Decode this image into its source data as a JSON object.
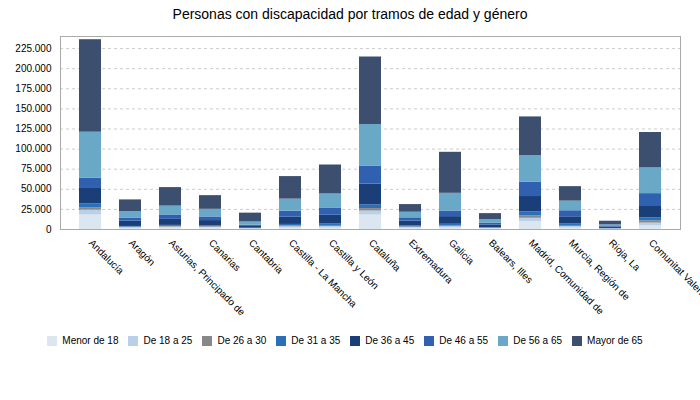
{
  "chart_data": {
    "type": "bar",
    "title": "Personas con discapacidad por tramos de edad y género",
    "categories": [
      "Andalucía",
      "Aragón",
      "Asturias, Principado de",
      "Canarias",
      "Cantabria",
      "Castilla - La Mancha",
      "Castilla y León",
      "Cataluña",
      "Extremadura",
      "Galicia",
      "Balears, Illes",
      "Madrid, Comunidad de",
      "Murcia, Región de",
      "Rioja, La",
      "Comunitat Valenciana"
    ],
    "series": [
      {
        "name": "Menor de 18",
        "color": "#dce6f1",
        "values": [
          18000,
          1500,
          1800,
          1800,
          700,
          1800,
          1800,
          18000,
          1500,
          2000,
          700,
          10000,
          1800,
          400,
          4500
        ]
      },
      {
        "name": "De 18 a 25",
        "color": "#b8d0e8",
        "values": [
          6000,
          800,
          1200,
          1000,
          350,
          1500,
          1800,
          5000,
          1000,
          1500,
          600,
          4000,
          1800,
          300,
          3500
        ]
      },
      {
        "name": "De 26 a 30",
        "color": "#888888",
        "values": [
          3000,
          700,
          900,
          800,
          250,
          1200,
          1400,
          3000,
          800,
          1200,
          450,
          3000,
          1400,
          250,
          2800
        ]
      },
      {
        "name": "De 31 a 35",
        "color": "#2970b8",
        "values": [
          5000,
          800,
          1200,
          1000,
          350,
          1800,
          2200,
          4500,
          1200,
          1800,
          600,
          5000,
          1800,
          350,
          3800
        ]
      },
      {
        "name": "De 36 a 45",
        "color": "#1a3f78",
        "values": [
          20000,
          6500,
          7500,
          6500,
          2200,
          9000,
          10500,
          26000,
          6000,
          9500,
          3200,
          19000,
          9000,
          1400,
          14000
        ]
      },
      {
        "name": "De 46 a 55",
        "color": "#3060b0",
        "values": [
          12000,
          4000,
          5500,
          4500,
          1500,
          7500,
          8500,
          22000,
          4000,
          7000,
          2200,
          18000,
          7500,
          900,
          16000
        ]
      },
      {
        "name": "De 56 a 65",
        "color": "#6aa8c8",
        "values": [
          57000,
          8000,
          11000,
          9500,
          4000,
          15000,
          18000,
          52000,
          7000,
          22000,
          4500,
          33000,
          12000,
          2200,
          32000
        ]
      },
      {
        "name": "Mayor de 65",
        "color": "#3c4f6e",
        "values": [
          115000,
          14500,
          23000,
          17000,
          11000,
          28000,
          36000,
          84000,
          9500,
          51000,
          7500,
          48000,
          18000,
          4500,
          44000
        ]
      }
    ],
    "ylim": [
      0,
      240000
    ],
    "yticks": [
      0,
      {
        "value": 25000,
        "label": "25.000"
      },
      {
        "value": 50000,
        "label": "50.000"
      },
      {
        "value": 75000,
        "label": "75.000"
      },
      {
        "value": 100000,
        "label": "100.000"
      },
      {
        "value": 125000,
        "label": "125.000"
      },
      {
        "value": 150000,
        "label": "150.000"
      },
      {
        "value": 175000,
        "label": "175.000"
      },
      {
        "value": 200000,
        "label": "200.000"
      },
      {
        "value": 225000,
        "label": "225.000"
      }
    ],
    "grid": true,
    "stacked": true,
    "legend": "bottom"
  }
}
